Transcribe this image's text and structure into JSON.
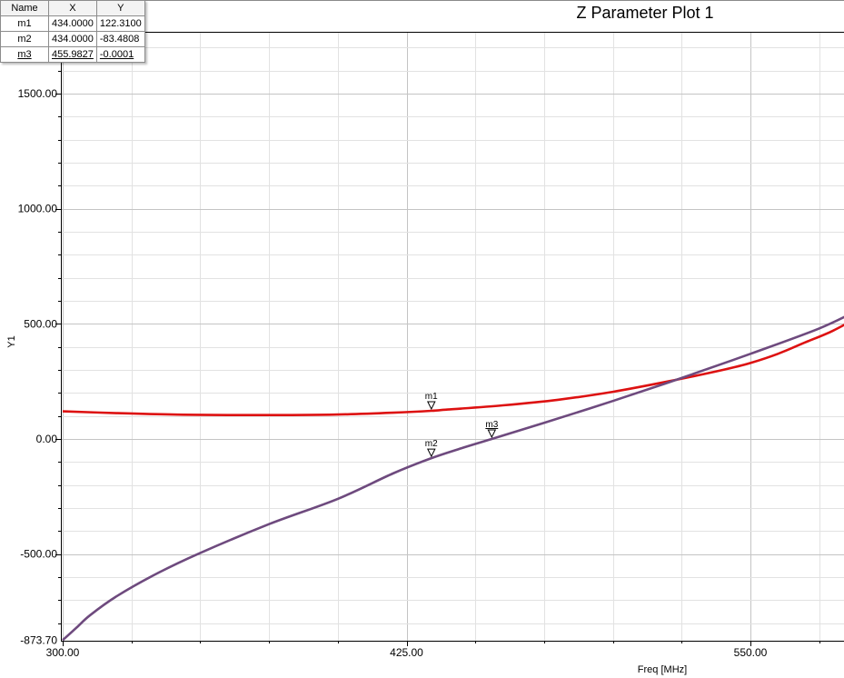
{
  "chart_data": {
    "type": "line",
    "title": "Z Parameter Plot 1",
    "xlabel": "Freq [MHz]",
    "ylabel": "Y1",
    "xlim": [
      300,
      590
    ],
    "ylim": [
      -873.7,
      1700
    ],
    "x_ticks": [
      "300.00",
      "425.00",
      "550.00"
    ],
    "y_ticks": [
      "1500.00",
      "1000.00",
      "500.00",
      "0.00",
      "-500.00",
      "-873.70"
    ],
    "grid": true,
    "series": [
      {
        "color": "#dd1111",
        "x": [
          300,
          320,
          340,
          360,
          380,
          400,
          420,
          434,
          440,
          460,
          480,
          500,
          520,
          540,
          550,
          560,
          570,
          580,
          590
        ],
        "y": [
          120,
          112,
          106,
          104,
          104,
          106,
          114,
          122.31,
          128,
          146,
          170,
          205,
          250,
          300,
          330,
          370,
          420,
          470,
          535
        ]
      },
      {
        "color": "#6e4a7e",
        "x": [
          300,
          305,
          310,
          320,
          335,
          350,
          375,
          400,
          420,
          434,
          445,
          455.98,
          475,
          500,
          525,
          550,
          575,
          590
        ],
        "y": [
          -873.7,
          -820,
          -765,
          -680,
          -580,
          -495,
          -370,
          -260,
          -150,
          -83.48,
          -40,
          -0.0001,
          70,
          165,
          265,
          370,
          480,
          565
        ]
      }
    ],
    "markers": [
      {
        "name": "m1",
        "x": "434.0000",
        "y": "122.3100",
        "xv": 434,
        "yv": 122.31,
        "active": false
      },
      {
        "name": "m2",
        "x": "434.0000",
        "y": "-83.4808",
        "xv": 434,
        "yv": -83.4808,
        "active": false
      },
      {
        "name": "m3",
        "x": "455.9827",
        "y": "-0.0001",
        "xv": 455.9827,
        "yv": -0.0001,
        "active": true
      }
    ]
  },
  "table": {
    "headers": {
      "name": "Name",
      "x": "X",
      "y": "Y"
    }
  }
}
